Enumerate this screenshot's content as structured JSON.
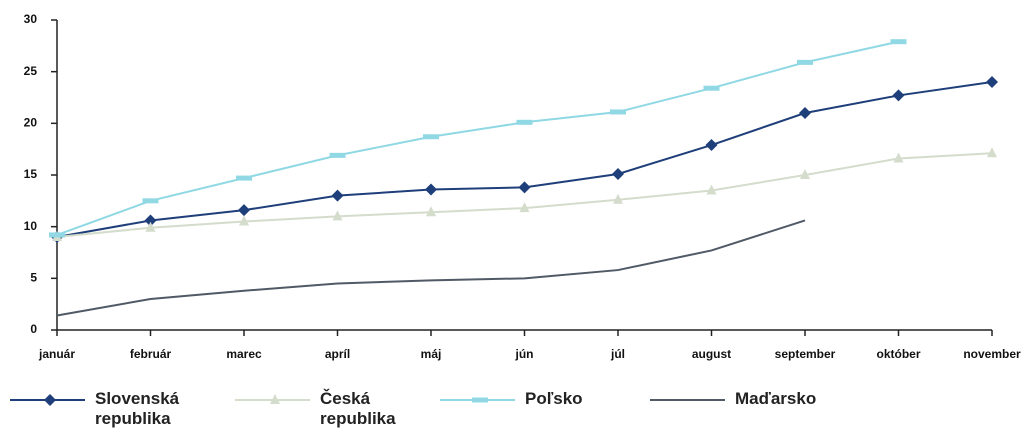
{
  "chart_data": {
    "type": "line",
    "categories": [
      "január",
      "február",
      "marec",
      "apríl",
      "máj",
      "jún",
      "júl",
      "august",
      "september",
      "október",
      "november"
    ],
    "ylim": [
      0,
      30
    ],
    "yticks": [
      0,
      5,
      10,
      15,
      20,
      25,
      30
    ],
    "series": [
      {
        "name": "Slovenská republika",
        "color": "#1f3f7a",
        "marker": "diamond",
        "values": [
          9.0,
          10.6,
          11.6,
          13.0,
          13.6,
          13.8,
          15.1,
          17.9,
          21.0,
          22.7,
          24.0
        ]
      },
      {
        "name": "Česká republika",
        "color": "#d4dccc",
        "marker": "triangle",
        "values": [
          9.0,
          9.9,
          10.5,
          11.0,
          11.4,
          11.8,
          12.6,
          13.5,
          15.0,
          16.6,
          17.1
        ]
      },
      {
        "name": "Poľsko",
        "color": "#8fd8e4",
        "marker": "dash",
        "values": [
          9.2,
          12.5,
          14.7,
          16.9,
          18.7,
          20.1,
          21.1,
          23.4,
          25.9,
          27.9,
          null
        ]
      },
      {
        "name": "Maďarsko",
        "color": "#505a66",
        "marker": "none",
        "values": [
          1.4,
          3.0,
          3.8,
          4.5,
          4.8,
          5.0,
          5.8,
          7.7,
          10.6,
          null,
          null
        ]
      }
    ]
  }
}
